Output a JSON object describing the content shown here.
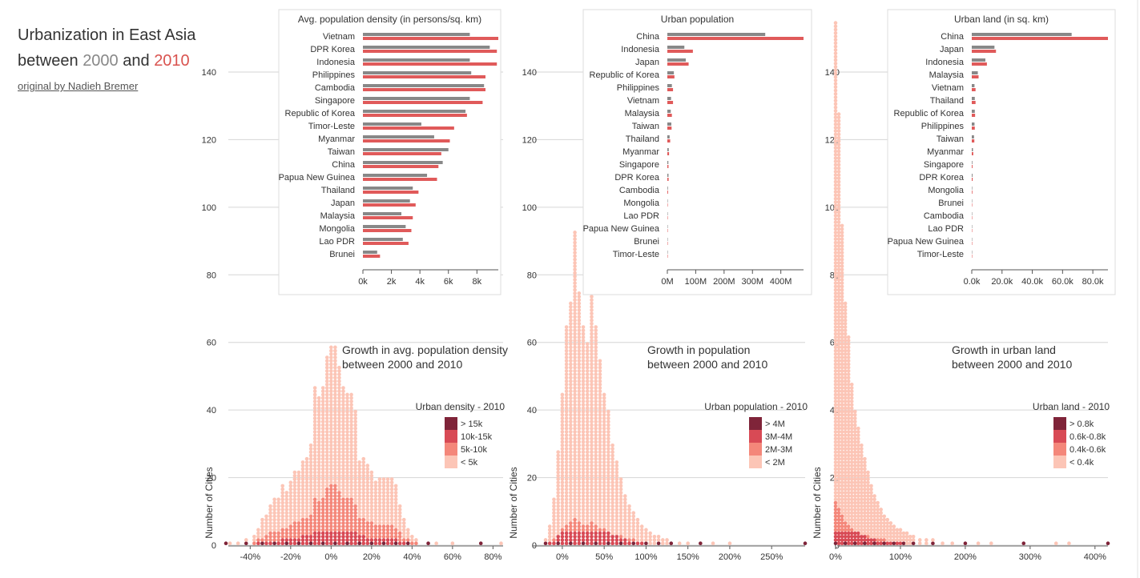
{
  "header": {
    "title_line1": "Urbanization in East Asia",
    "title_prefix": "between",
    "year_a": "2000",
    "and_word": "and",
    "year_b": "2010",
    "credit": "original by Nadieh Bremer"
  },
  "colors": {
    "bar_2000": "#888888",
    "bar_2010": "#e05a5a",
    "bin_1": "#fcc5b6",
    "bin_2": "#f4877a",
    "bin_3": "#d84a55",
    "bin_4": "#7f2439"
  },
  "chart_data": [
    {
      "type": "bar",
      "id": "density-bars",
      "title": "Avg. population density (in persons/sq. km)",
      "categories": [
        "Vietnam",
        "DPR Korea",
        "Indonesia",
        "Philippines",
        "Cambodia",
        "Singapore",
        "Republic of Korea",
        "Timor-Leste",
        "Myanmar",
        "Taiwan",
        "China",
        "Papua New Guinea",
        "Thailand",
        "Japan",
        "Malaysia",
        "Mongolia",
        "Lao PDR",
        "Brunei"
      ],
      "series": [
        {
          "name": "2000",
          "values": [
            7500,
            8900,
            7500,
            7600,
            8500,
            7500,
            7200,
            4100,
            5000,
            6000,
            5600,
            4500,
            3500,
            3300,
            2700,
            3000,
            2800,
            1000
          ]
        },
        {
          "name": "2010",
          "values": [
            9500,
            9400,
            9400,
            8600,
            8600,
            8400,
            7300,
            6400,
            6100,
            5500,
            5300,
            5200,
            3900,
            3700,
            3500,
            3400,
            3200,
            1200
          ]
        }
      ],
      "xticks": [
        "0k",
        "2k",
        "4k",
        "6k",
        "8k"
      ],
      "xtick_values": [
        0,
        2000,
        4000,
        6000,
        8000
      ],
      "xlim": [
        0,
        9500
      ]
    },
    {
      "type": "bar",
      "id": "urbanpop-bars",
      "title": "Urban population",
      "categories": [
        "China",
        "Indonesia",
        "Japan",
        "Republic of Korea",
        "Philippines",
        "Vietnam",
        "Malaysia",
        "Taiwan",
        "Thailand",
        "Myanmar",
        "Singapore",
        "DPR Korea",
        "Cambodia",
        "Mongolia",
        "Lao PDR",
        "Papua New Guinea",
        "Brunei",
        "Timor-Leste"
      ],
      "series": [
        {
          "name": "2000",
          "values": [
            345000000,
            60000000,
            65000000,
            23000000,
            16000000,
            13000000,
            12000000,
            14000000,
            8000000,
            5000000,
            3500000,
            4000000,
            2000000,
            1000000,
            500000,
            200000,
            200000,
            100000
          ]
        },
        {
          "name": "2010",
          "values": [
            480000000,
            90000000,
            75000000,
            25000000,
            20000000,
            20000000,
            16000000,
            15000000,
            10000000,
            6000000,
            4000000,
            4500000,
            2500000,
            1200000,
            700000,
            300000,
            250000,
            150000
          ]
        }
      ],
      "xticks": [
        "0M",
        "100M",
        "200M",
        "300M",
        "400M"
      ],
      "xtick_values": [
        0,
        100000000,
        200000000,
        300000000,
        400000000
      ],
      "xlim": [
        0,
        480000000
      ]
    },
    {
      "type": "bar",
      "id": "urbanland-bars",
      "title": "Urban land (in sq. km)",
      "categories": [
        "China",
        "Japan",
        "Indonesia",
        "Malaysia",
        "Vietnam",
        "Thailand",
        "Republic of Korea",
        "Philippines",
        "Taiwan",
        "Myanmar",
        "Singapore",
        "DPR Korea",
        "Mongolia",
        "Brunei",
        "Cambodia",
        "Lao PDR",
        "Papua New Guinea",
        "Timor-Leste"
      ],
      "series": [
        {
          "name": "2000",
          "values": [
            66000,
            15000,
            9000,
            4000,
            1800,
            2000,
            2000,
            1800,
            1500,
            800,
            400,
            500,
            300,
            200,
            200,
            100,
            80,
            30
          ]
        },
        {
          "name": "2010",
          "values": [
            90000,
            16000,
            10000,
            4500,
            2500,
            2500,
            2200,
            2000,
            1700,
            1000,
            500,
            600,
            400,
            250,
            250,
            150,
            100,
            40
          ]
        }
      ],
      "xticks": [
        "0.0k",
        "20.0k",
        "40.0k",
        "60.0k",
        "80.0k"
      ],
      "xtick_values": [
        0,
        20000,
        40000,
        60000,
        80000
      ],
      "xlim": [
        0,
        90000
      ]
    },
    {
      "type": "scatter",
      "id": "density-growth",
      "title_line1": "Growth in avg. population density",
      "title_line2": "between 2000 and 2010",
      "ylabel": "Number of Cities",
      "yticks": [
        0,
        20,
        40,
        60,
        80,
        100,
        120,
        140
      ],
      "ylim": [
        0,
        160
      ],
      "xticks": [
        "-40%",
        "-20%",
        "0%",
        "20%",
        "40%",
        "60%",
        "80%"
      ],
      "xtick_values": [
        -40,
        -20,
        0,
        20,
        40,
        60,
        80
      ],
      "xlim": [
        -52,
        85
      ],
      "bin_width": 2,
      "legend_title": "Urban density - 2010",
      "legend_labels": [
        "> 15k",
        "10k-15k",
        "5k-10k",
        "< 5k"
      ],
      "bins": [
        {
          "x": -52,
          "count": 1
        },
        {
          "x": -50,
          "count": 1
        },
        {
          "x": -46,
          "count": 1
        },
        {
          "x": -42,
          "count": 2
        },
        {
          "x": -38,
          "count": 3
        },
        {
          "x": -36,
          "count": 5
        },
        {
          "x": -34,
          "count": 8
        },
        {
          "x": -32,
          "count": 9
        },
        {
          "x": -30,
          "count": 12
        },
        {
          "x": -28,
          "count": 14
        },
        {
          "x": -26,
          "count": 14
        },
        {
          "x": -24,
          "count": 18
        },
        {
          "x": -22,
          "count": 16
        },
        {
          "x": -20,
          "count": 19
        },
        {
          "x": -18,
          "count": 22
        },
        {
          "x": -16,
          "count": 22
        },
        {
          "x": -14,
          "count": 25
        },
        {
          "x": -12,
          "count": 26
        },
        {
          "x": -10,
          "count": 30
        },
        {
          "x": -8,
          "count": 47
        },
        {
          "x": -6,
          "count": 44
        },
        {
          "x": -4,
          "count": 47
        },
        {
          "x": -2,
          "count": 56
        },
        {
          "x": 0,
          "count": 59
        },
        {
          "x": 2,
          "count": 59
        },
        {
          "x": 4,
          "count": 53
        },
        {
          "x": 6,
          "count": 47
        },
        {
          "x": 8,
          "count": 45
        },
        {
          "x": 10,
          "count": 45
        },
        {
          "x": 12,
          "count": 40
        },
        {
          "x": 14,
          "count": 25
        },
        {
          "x": 16,
          "count": 26
        },
        {
          "x": 18,
          "count": 24
        },
        {
          "x": 20,
          "count": 22
        },
        {
          "x": 22,
          "count": 19
        },
        {
          "x": 24,
          "count": 20
        },
        {
          "x": 26,
          "count": 20
        },
        {
          "x": 28,
          "count": 20
        },
        {
          "x": 30,
          "count": 20
        },
        {
          "x": 32,
          "count": 18
        },
        {
          "x": 34,
          "count": 12
        },
        {
          "x": 36,
          "count": 8
        },
        {
          "x": 38,
          "count": 5
        },
        {
          "x": 40,
          "count": 3
        },
        {
          "x": 42,
          "count": 2
        },
        {
          "x": 48,
          "count": 1
        },
        {
          "x": 52,
          "count": 1
        },
        {
          "x": 60,
          "count": 1
        },
        {
          "x": 74,
          "count": 1
        },
        {
          "x": 84,
          "count": 1
        }
      ]
    },
    {
      "type": "scatter",
      "id": "population-growth",
      "title_line1": "Growth in population",
      "title_line2": "between 2000 and 2010",
      "ylabel": "Number of Cities",
      "yticks": [
        0,
        20,
        40,
        60,
        80,
        100,
        120,
        140
      ],
      "ylim": [
        0,
        160
      ],
      "xticks": [
        "0%",
        "50%",
        "100%",
        "150%",
        "200%",
        "250%"
      ],
      "xtick_values": [
        0,
        50,
        100,
        150,
        200,
        250
      ],
      "xlim": [
        -20,
        290
      ],
      "bin_width": 5,
      "legend_title": "Urban population - 2010",
      "legend_labels": [
        "> 4M",
        "3M-4M",
        "2M-3M",
        "< 2M"
      ],
      "bins": [
        {
          "x": -20,
          "count": 2
        },
        {
          "x": -15,
          "count": 6
        },
        {
          "x": -10,
          "count": 14
        },
        {
          "x": -5,
          "count": 28
        },
        {
          "x": 0,
          "count": 45
        },
        {
          "x": 5,
          "count": 65
        },
        {
          "x": 10,
          "count": 72
        },
        {
          "x": 15,
          "count": 93
        },
        {
          "x": 20,
          "count": 75
        },
        {
          "x": 25,
          "count": 65
        },
        {
          "x": 30,
          "count": 60
        },
        {
          "x": 35,
          "count": 75
        },
        {
          "x": 40,
          "count": 65
        },
        {
          "x": 45,
          "count": 55
        },
        {
          "x": 50,
          "count": 45
        },
        {
          "x": 55,
          "count": 40
        },
        {
          "x": 60,
          "count": 30
        },
        {
          "x": 65,
          "count": 25
        },
        {
          "x": 70,
          "count": 20
        },
        {
          "x": 75,
          "count": 15
        },
        {
          "x": 80,
          "count": 12
        },
        {
          "x": 85,
          "count": 10
        },
        {
          "x": 90,
          "count": 8
        },
        {
          "x": 95,
          "count": 6
        },
        {
          "x": 100,
          "count": 5
        },
        {
          "x": 105,
          "count": 4
        },
        {
          "x": 110,
          "count": 3
        },
        {
          "x": 115,
          "count": 3
        },
        {
          "x": 120,
          "count": 2
        },
        {
          "x": 125,
          "count": 2
        },
        {
          "x": 130,
          "count": 1
        },
        {
          "x": 140,
          "count": 1
        },
        {
          "x": 150,
          "count": 1
        },
        {
          "x": 165,
          "count": 1
        },
        {
          "x": 180,
          "count": 1
        },
        {
          "x": 200,
          "count": 1
        },
        {
          "x": 290,
          "count": 1
        }
      ]
    },
    {
      "type": "scatter",
      "id": "land-growth",
      "title_line1": "Growth in urban land",
      "title_line2": "between 2000 and 2010",
      "ylabel": "Number of Cities",
      "yticks": [
        0,
        20,
        40,
        60,
        80,
        100,
        120,
        140
      ],
      "ylim": [
        0,
        160
      ],
      "xticks": [
        "0%",
        "100%",
        "200%",
        "300%",
        "400%"
      ],
      "xtick_values": [
        0,
        100,
        200,
        300,
        400
      ],
      "xlim": [
        0,
        420
      ],
      "bin_width": 5,
      "legend_title": "Urban land - 2010",
      "legend_labels": [
        "> 0.8k",
        "0.6k-0.8k",
        "0.4k-0.6k",
        "< 0.4k"
      ],
      "bins": [
        {
          "x": 0,
          "count": 155
        },
        {
          "x": 5,
          "count": 128
        },
        {
          "x": 10,
          "count": 95
        },
        {
          "x": 15,
          "count": 72
        },
        {
          "x": 20,
          "count": 62
        },
        {
          "x": 25,
          "count": 48
        },
        {
          "x": 30,
          "count": 40
        },
        {
          "x": 35,
          "count": 35
        },
        {
          "x": 40,
          "count": 30
        },
        {
          "x": 45,
          "count": 26
        },
        {
          "x": 50,
          "count": 22
        },
        {
          "x": 55,
          "count": 18
        },
        {
          "x": 60,
          "count": 15
        },
        {
          "x": 65,
          "count": 13
        },
        {
          "x": 70,
          "count": 11
        },
        {
          "x": 75,
          "count": 9
        },
        {
          "x": 80,
          "count": 8
        },
        {
          "x": 85,
          "count": 7
        },
        {
          "x": 90,
          "count": 6
        },
        {
          "x": 95,
          "count": 5
        },
        {
          "x": 100,
          "count": 5
        },
        {
          "x": 105,
          "count": 4
        },
        {
          "x": 110,
          "count": 4
        },
        {
          "x": 115,
          "count": 3
        },
        {
          "x": 120,
          "count": 3
        },
        {
          "x": 130,
          "count": 2
        },
        {
          "x": 140,
          "count": 2
        },
        {
          "x": 150,
          "count": 2
        },
        {
          "x": 165,
          "count": 1
        },
        {
          "x": 180,
          "count": 1
        },
        {
          "x": 200,
          "count": 1
        },
        {
          "x": 220,
          "count": 1
        },
        {
          "x": 240,
          "count": 1
        },
        {
          "x": 290,
          "count": 1
        },
        {
          "x": 340,
          "count": 1
        },
        {
          "x": 360,
          "count": 1
        },
        {
          "x": 420,
          "count": 1
        }
      ]
    }
  ]
}
